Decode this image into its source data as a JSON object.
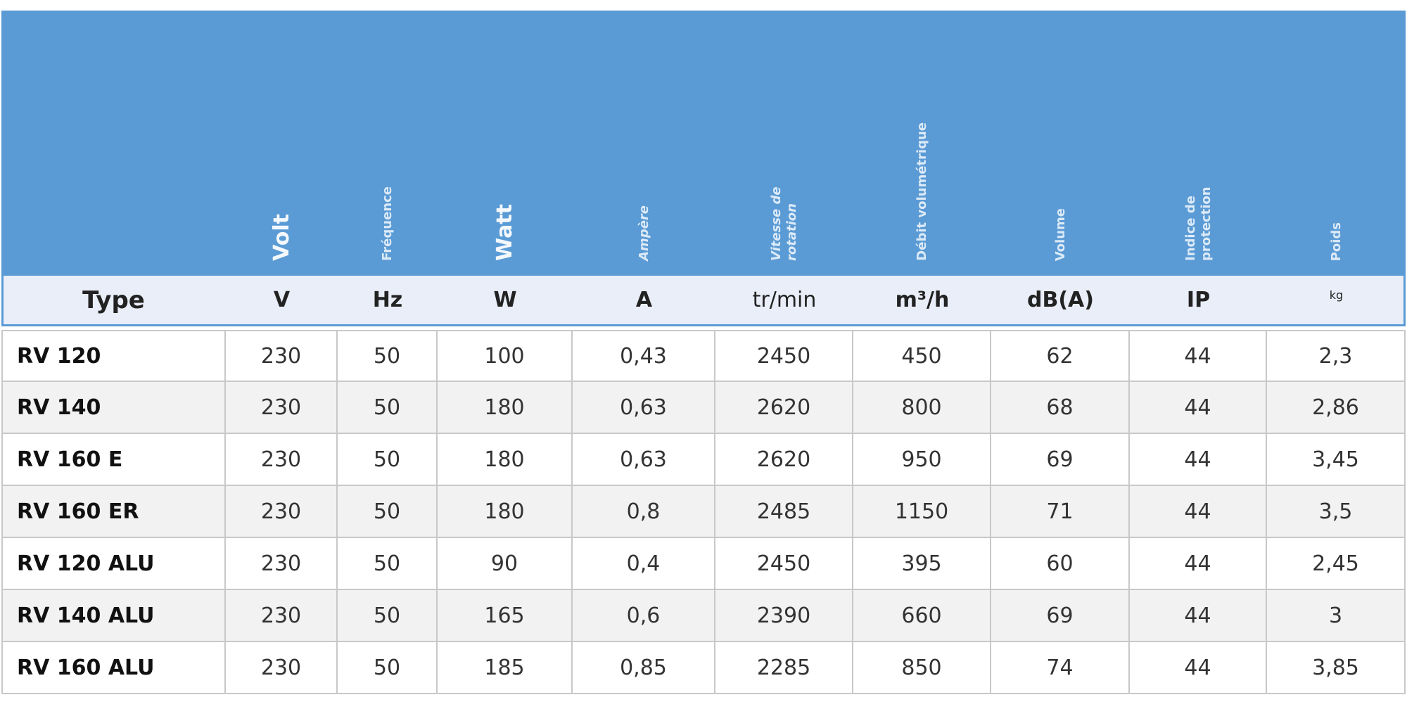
{
  "header": {
    "labels": [
      "Volt",
      "Fréquence",
      "Watt",
      "Ampère",
      "Vitesse de rotation",
      "Débit volumétrique",
      "Volume",
      "Indice de protection",
      "Poids"
    ],
    "units": [
      "Type",
      "V",
      "Hz",
      "W",
      "A",
      "tr/min",
      "m³/h",
      "dB(A)",
      "IP",
      "kg"
    ]
  },
  "table": {
    "rows": [
      [
        "RV 120",
        "230",
        "50",
        "100",
        "0,43",
        "2450",
        "450",
        "62",
        "44",
        "2,3"
      ],
      [
        "RV 140",
        "230",
        "50",
        "180",
        "0,63",
        "2620",
        "800",
        "68",
        "44",
        "2,86"
      ],
      [
        "RV 160 E",
        "230",
        "50",
        "180",
        "0,63",
        "2620",
        "950",
        "69",
        "44",
        "3,45"
      ],
      [
        "RV 160 ER",
        "230",
        "50",
        "180",
        "0,8",
        "2485",
        "1150",
        "71",
        "44",
        "3,5"
      ],
      [
        "RV 120 ALU",
        "230",
        "50",
        "90",
        "0,4",
        "2450",
        "395",
        "60",
        "44",
        "2,45"
      ],
      [
        "RV 140 ALU",
        "230",
        "50",
        "165",
        "0,6",
        "2390",
        "660",
        "69",
        "44",
        "3"
      ],
      [
        "RV 160 ALU",
        "230",
        "50",
        "185",
        "0,85",
        "2285",
        "850",
        "74",
        "44",
        "3,85"
      ]
    ]
  }
}
